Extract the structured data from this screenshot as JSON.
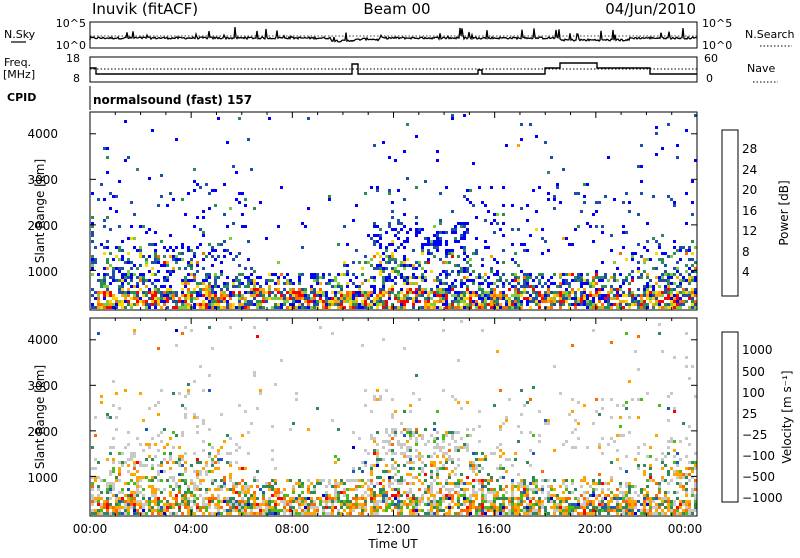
{
  "header": {
    "station": "Inuvik (fitACF)",
    "beam": "Beam 00",
    "date": "04/Jun/2010"
  },
  "noise_panel": {
    "left_label": "N.Sky",
    "right_label": "N.Search",
    "left_ticks": [
      "10^5",
      "10^0"
    ],
    "right_ticks": [
      "10^5",
      "10^0"
    ]
  },
  "freq_panel": {
    "left_label_1": "Freq.",
    "left_label_2": "[MHz]",
    "right_label": "Nave",
    "left_ticks": [
      "18",
      "8"
    ],
    "right_ticks": [
      "60",
      "0"
    ]
  },
  "cpid_panel": {
    "label": "CPID",
    "program": "normalsound (fast) 157"
  },
  "colors": {
    "power_scale": [
      "#0000ff",
      "#1f4faa",
      "#2e8b57",
      "#7ccd3c",
      "#ffd700",
      "#ffa500",
      "#ff6a00",
      "#ff0000"
    ],
    "velocity_scale": [
      "#0000cd",
      "#1e5bb8",
      "#2e8b57",
      "#4cbb17",
      "#c8c8c8",
      "#ffa500",
      "#ff6a00",
      "#ff0000"
    ]
  },
  "chart_data": [
    {
      "type": "heatmap",
      "title": "",
      "ylabel": "Slant Range [km]",
      "xlabel": "",
      "ylim": [
        180,
        4500
      ],
      "yticks": [
        "1000",
        "2000",
        "3000",
        "4000"
      ],
      "xticks": [
        "00:00",
        "04:00",
        "08:00",
        "12:00",
        "16:00",
        "20:00",
        "00:00"
      ],
      "colorbar": {
        "label": "Power [dB]",
        "ticks": [
          "4",
          "8",
          "12",
          "16",
          "20",
          "24",
          "28"
        ],
        "range": [
          0,
          30
        ]
      }
    },
    {
      "type": "heatmap",
      "title": "",
      "ylabel": "Slant Range [km]",
      "xlabel": "Time UT",
      "ylim": [
        180,
        4500
      ],
      "yticks": [
        "1000",
        "2000",
        "3000",
        "4000"
      ],
      "xticks": [
        "00:00",
        "04:00",
        "08:00",
        "12:00",
        "16:00",
        "20:00",
        "00:00"
      ],
      "colorbar": {
        "label": "Velocity [m s⁻¹]",
        "ticks": [
          "1000",
          "500",
          "100",
          "25",
          "−25",
          "−100",
          "−500",
          "−1000"
        ]
      }
    }
  ]
}
